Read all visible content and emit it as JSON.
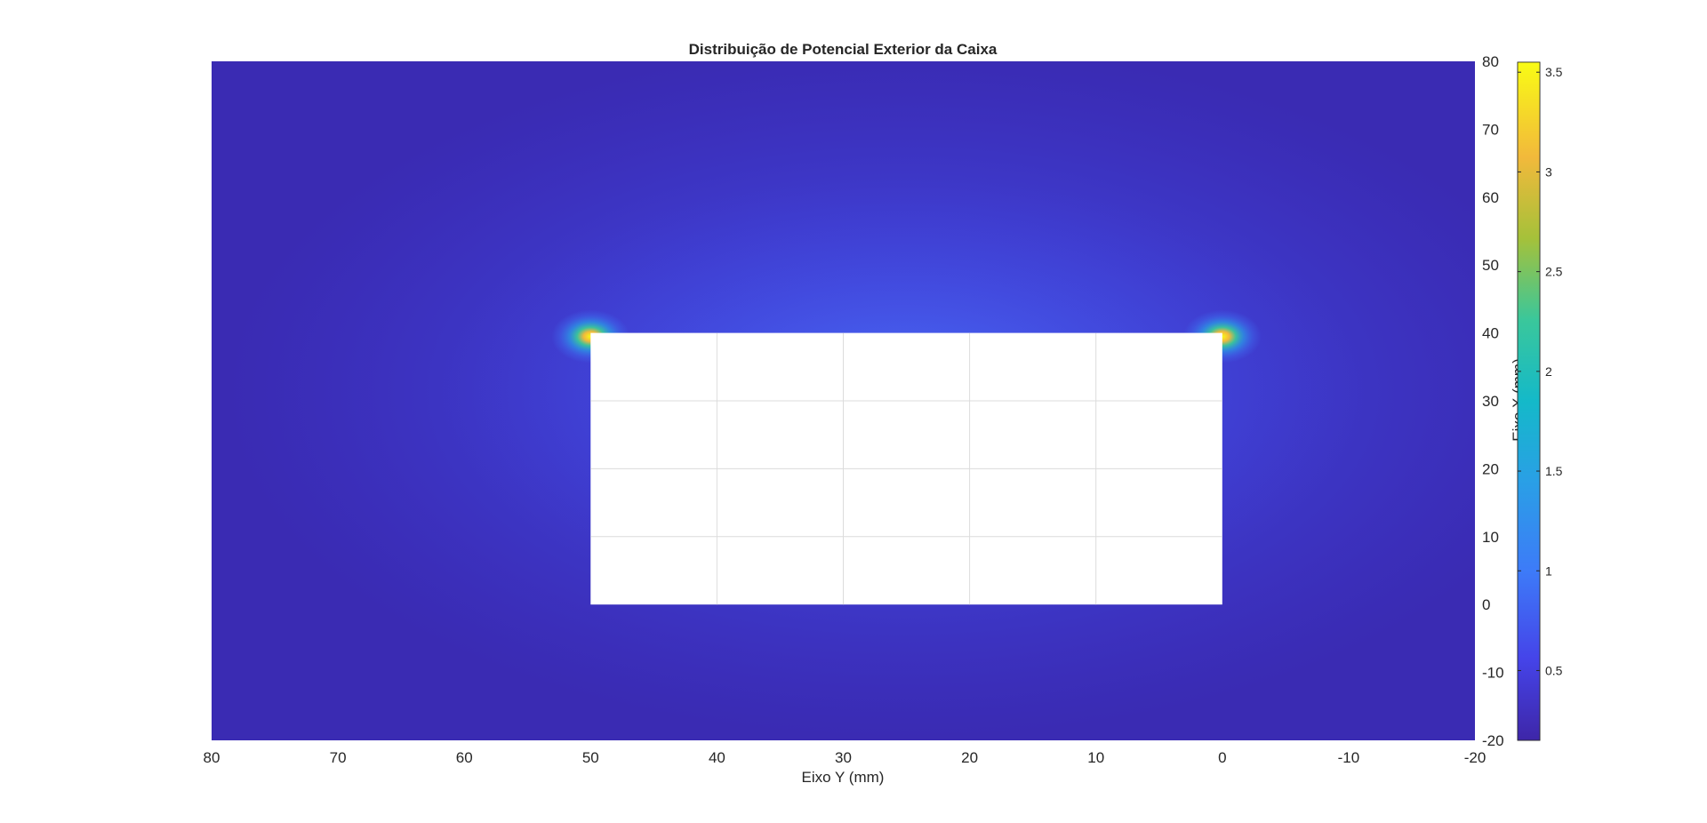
{
  "chart_data": {
    "type": "heatmap",
    "title": "Distribuição de Potencial Exterior da Caixa",
    "xlabel": "Eixo Y (mm)",
    "ylabel": "Eixo X (mm)",
    "x_direction": "reversed",
    "y_axis_location": "right",
    "xlim": [
      -20,
      80
    ],
    "ylim": [
      -20,
      80
    ],
    "xticks": [
      80,
      70,
      60,
      50,
      40,
      30,
      20,
      10,
      0,
      -10,
      -20
    ],
    "yticks": [
      80,
      70,
      60,
      50,
      40,
      30,
      20,
      10,
      0,
      -10,
      -20
    ],
    "colormap": "parula",
    "colorbar": {
      "range": [
        0.15,
        3.55
      ],
      "ticks": [
        0.5,
        1,
        1.5,
        2,
        2.5,
        3,
        3.5
      ],
      "tick_labels": [
        "0.5",
        "1",
        "1.5",
        "2",
        "2.5",
        "3",
        "3.5"
      ]
    },
    "box": {
      "x_range": [
        0,
        50
      ],
      "y_range": [
        0,
        40
      ],
      "fill": "#ffffff"
    },
    "peaks": [
      {
        "x": 50,
        "y": 40,
        "value": 3.5
      },
      {
        "x": 0,
        "y": 40,
        "value": 3.5
      }
    ],
    "grid": true
  }
}
